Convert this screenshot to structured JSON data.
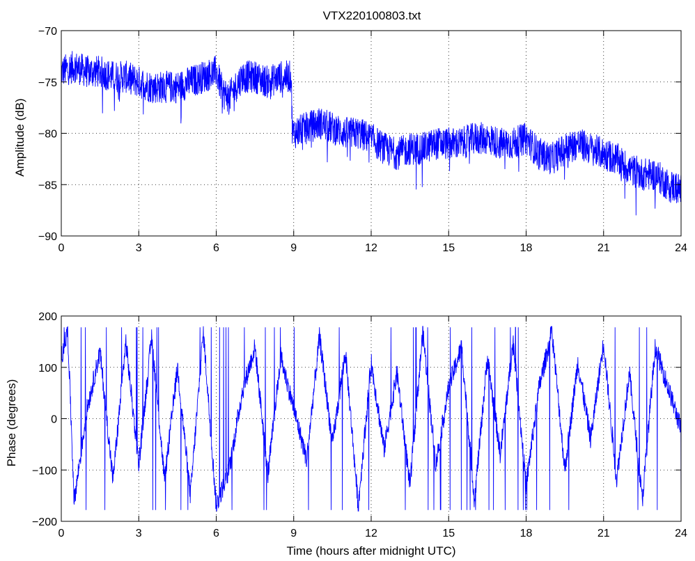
{
  "figure": {
    "title": "VTX220100803.txt",
    "line_color": "#0000ff",
    "background": "#ffffff"
  },
  "chart_data": [
    {
      "type": "line",
      "title": "VTX220100803.txt",
      "xlabel": "",
      "ylabel": "Amplitude (dB)",
      "xlim": [
        0,
        24
      ],
      "ylim": [
        -90,
        -70
      ],
      "xticks": [
        0,
        3,
        6,
        9,
        12,
        15,
        18,
        21,
        24
      ],
      "yticks": [
        -90,
        -85,
        -80,
        -75,
        -70
      ],
      "xtick_labels": [
        "0",
        "3",
        "6",
        "9",
        "12",
        "15",
        "18",
        "21",
        "24"
      ],
      "ytick_labels": [
        "−90",
        "−85",
        "−80",
        "−75",
        "−70"
      ],
      "grid": true,
      "series": [
        {
          "x": [
            0,
            0.5,
            1,
            1.5,
            2,
            2.5,
            3,
            3.5,
            4,
            4.5,
            5,
            5.5,
            6,
            6.25,
            6.5,
            7,
            7.5,
            8,
            8.5,
            8.9,
            8.95,
            9.5,
            10,
            10.5,
            11,
            11.5,
            12,
            12.5,
            13,
            13.5,
            14,
            14.5,
            15,
            15.5,
            16,
            16.5,
            17,
            17.5,
            18,
            18.5,
            19,
            19.5,
            20,
            20.5,
            21,
            21.5,
            22,
            22.5,
            23,
            23.5,
            24
          ],
          "y": [
            -74,
            -73.5,
            -74,
            -74,
            -74.5,
            -74.5,
            -75,
            -75.5,
            -75.5,
            -75.5,
            -75,
            -74.5,
            -74,
            -76,
            -76.5,
            -74.5,
            -74.5,
            -75,
            -74.5,
            -74.5,
            -80,
            -79.5,
            -79,
            -79.5,
            -80,
            -80,
            -80.5,
            -81.5,
            -82,
            -81.5,
            -81.5,
            -81,
            -81,
            -81,
            -80.5,
            -80.5,
            -81,
            -81,
            -80.5,
            -82,
            -82.5,
            -81.5,
            -81,
            -81.5,
            -82,
            -82.5,
            -83.5,
            -84,
            -84,
            -85,
            -85.5
          ],
          "noise": 1.6
        }
      ]
    },
    {
      "type": "line",
      "title": "",
      "xlabel": "Time (hours after midnight UTC)",
      "ylabel": "Phase (degrees)",
      "xlim": [
        0,
        24
      ],
      "ylim": [
        -200,
        200
      ],
      "xticks": [
        0,
        3,
        6,
        9,
        12,
        15,
        18,
        21,
        24
      ],
      "yticks": [
        -200,
        -100,
        0,
        100,
        200
      ],
      "xtick_labels": [
        "0",
        "3",
        "6",
        "9",
        "12",
        "15",
        "18",
        "21",
        "24"
      ],
      "ytick_labels": [
        "−200",
        "−100",
        "0",
        "100",
        "200"
      ],
      "grid": true,
      "series": [
        {
          "x": [
            0,
            0.25,
            0.5,
            1,
            1.5,
            2,
            2.5,
            3,
            3.5,
            4,
            4.5,
            5,
            5.5,
            6,
            6.5,
            7,
            7.5,
            8,
            8.5,
            9,
            9.5,
            10,
            10.5,
            11,
            11.5,
            12,
            12.5,
            13,
            13.5,
            14,
            14.5,
            15,
            15.5,
            16,
            16.5,
            17,
            17.5,
            18,
            18.5,
            19,
            19.5,
            20,
            20.5,
            21,
            21.5,
            22,
            22.5,
            23,
            23.5,
            24
          ],
          "y": [
            120,
            170,
            -160,
            20,
            130,
            -120,
            150,
            -90,
            160,
            -120,
            100,
            -150,
            170,
            -170,
            -100,
            50,
            140,
            -110,
            120,
            20,
            -80,
            160,
            -50,
            130,
            -170,
            110,
            -60,
            90,
            -130,
            170,
            -90,
            60,
            140,
            -160,
            120,
            -70,
            150,
            -130,
            60,
            170,
            -100,
            110,
            -40,
            150,
            -120,
            90,
            -160,
            140,
            60,
            -20
          ],
          "switch_rate": 0.22
        }
      ]
    }
  ]
}
